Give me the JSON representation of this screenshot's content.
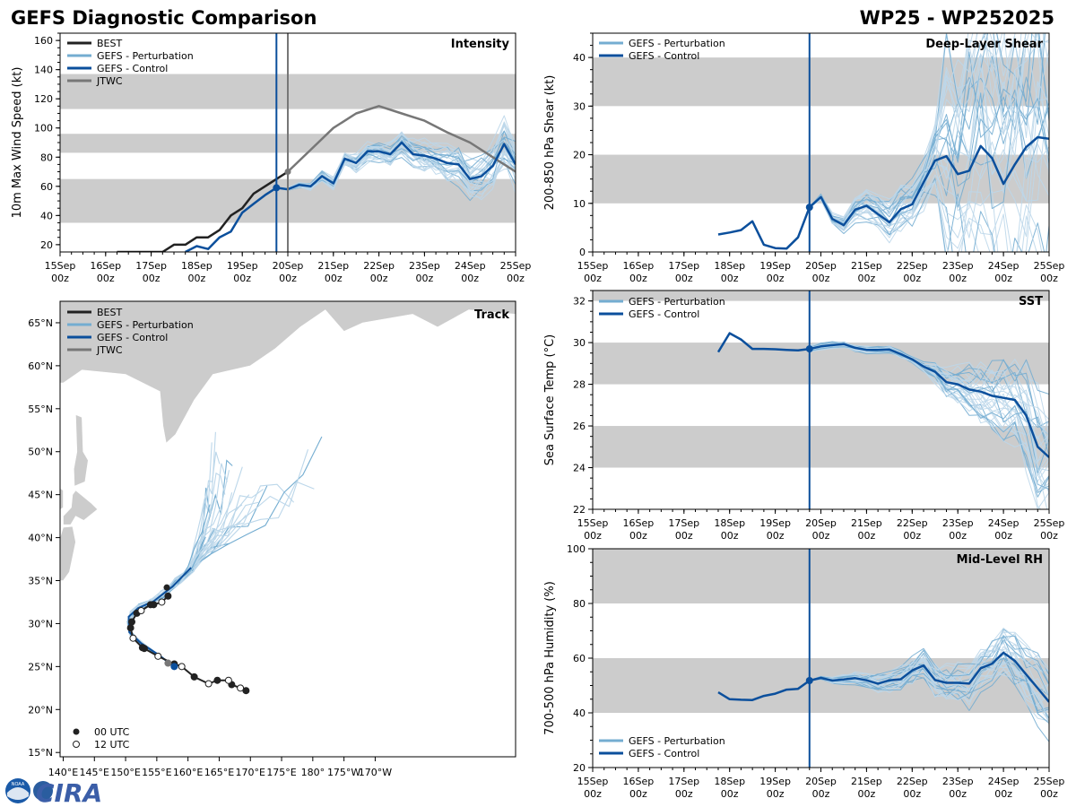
{
  "figure": {
    "title_left": "GEFS Diagnostic Comparison",
    "title_right": "WP25 - WP252025",
    "logo_text": "CIRA",
    "logo_badge_text": "NOAA"
  },
  "colors": {
    "best": "#222222",
    "perturbation": "#74add1",
    "perturbation_light": "#bcd7ea",
    "control": "#0b4f9c",
    "jtwc": "#777777",
    "band": "#cccccc",
    "land": "#cccccc"
  },
  "time_axis": {
    "labels": [
      "15Sep",
      "16Sep",
      "17Sep",
      "18Sep",
      "19Sep",
      "20Sep",
      "21Sep",
      "22Sep",
      "23Sep",
      "24Sep",
      "25Sep"
    ],
    "sublabel": "00z",
    "analysis_time_days": 4.75,
    "jtwc_analysis_time_days": 5.0
  },
  "chart_data": [
    {
      "id": "intensity",
      "type": "line",
      "title": "Intensity",
      "ylabel": "10m Max Wind Speed (kt)",
      "xlim_days": [
        0,
        10
      ],
      "ylim": [
        15,
        165
      ],
      "yticks": [
        20,
        40,
        60,
        80,
        100,
        120,
        140,
        160
      ],
      "bands": [
        [
          35,
          65
        ],
        [
          83,
          96
        ],
        [
          113,
          137
        ]
      ],
      "legend": [
        "BEST",
        "GEFS - Perturbation",
        "GEFS - Control",
        "JTWC"
      ],
      "series": [
        {
          "name": "BEST",
          "x": [
            1.25,
            1.5,
            1.75,
            2,
            2.25,
            2.5,
            2.75,
            3,
            3.25,
            3.5,
            3.75,
            4,
            4.25,
            4.5,
            4.75,
            5
          ],
          "y": [
            15,
            15,
            15,
            15,
            15,
            20,
            20,
            25,
            25,
            30,
            40,
            45,
            55,
            60,
            65,
            70
          ]
        },
        {
          "name": "GEFS - Control",
          "x": [
            2.75,
            3,
            3.25,
            3.5,
            3.75,
            4,
            4.25,
            4.5,
            4.75,
            5,
            5.25,
            5.5,
            5.75,
            6,
            6.25,
            6.5,
            6.75,
            7,
            7.25,
            7.5,
            7.75,
            8,
            8.25,
            8.5,
            8.75,
            9,
            9.25,
            9.5,
            9.75,
            10
          ],
          "y": [
            15,
            19,
            17,
            25,
            29,
            42,
            48,
            54,
            59,
            58,
            61,
            60,
            67,
            62,
            79,
            76,
            84,
            84,
            82,
            90,
            82,
            81,
            79,
            76,
            75,
            65,
            67,
            74,
            89,
            75
          ]
        },
        {
          "name": "JTWC",
          "x": [
            5,
            5.5,
            6,
            6.5,
            7,
            7.5,
            8,
            8.5,
            9,
            9.5,
            10
          ],
          "y": [
            70,
            85,
            100,
            110,
            115,
            110,
            105,
            97,
            90,
            80,
            70
          ]
        }
      ]
    },
    {
      "id": "shear",
      "type": "line",
      "title": "Deep-Layer Shear",
      "ylabel": "200-850 hPa Shear (kt)",
      "xlim_days": [
        0,
        10
      ],
      "ylim": [
        0,
        45
      ],
      "yticks": [
        0,
        10,
        20,
        30,
        40
      ],
      "bands": [
        [
          10,
          20
        ],
        [
          30,
          40
        ]
      ],
      "legend": [
        "GEFS - Perturbation",
        "GEFS - Control"
      ],
      "series": [
        {
          "name": "GEFS - Control",
          "x": [
            2.75,
            3,
            3.25,
            3.5,
            3.75,
            4,
            4.25,
            4.5,
            4.75,
            5,
            5.25,
            5.5,
            5.75,
            6,
            6.25,
            6.5,
            6.75,
            7,
            7.25,
            7.5,
            7.75,
            8,
            8.25,
            8.5,
            8.75,
            9,
            9.25,
            9.5,
            9.75,
            10
          ],
          "y": [
            3.6,
            4,
            4.5,
            6.3,
            1.5,
            0.8,
            0.7,
            3,
            9.2,
            11.3,
            6.8,
            5.5,
            8.7,
            9.5,
            7.8,
            6.1,
            8.8,
            9.8,
            14.3,
            18.8,
            19.7,
            16,
            16.7,
            21.8,
            19.3,
            14,
            18,
            21.6,
            23.6,
            23.3
          ]
        }
      ]
    },
    {
      "id": "sst",
      "type": "line",
      "title": "SST",
      "ylabel": "Sea Surface Temp (°C)",
      "xlim_days": [
        0,
        10
      ],
      "ylim": [
        22,
        32.5
      ],
      "yticks": [
        22,
        24,
        26,
        28,
        30,
        32
      ],
      "bands": [
        [
          24,
          26
        ],
        [
          28,
          30
        ],
        [
          32,
          33
        ]
      ],
      "legend": [
        "GEFS - Perturbation",
        "GEFS - Control"
      ],
      "series": [
        {
          "name": "GEFS - Control",
          "x": [
            2.75,
            3,
            3.25,
            3.5,
            3.75,
            4,
            4.25,
            4.5,
            4.75,
            5,
            5.25,
            5.5,
            5.75,
            6,
            6.25,
            6.5,
            6.75,
            7,
            7.25,
            7.5,
            7.75,
            8,
            8.25,
            8.5,
            8.75,
            9,
            9.25,
            9.5,
            9.75,
            10
          ],
          "y": [
            29.55,
            30.45,
            30.15,
            29.7,
            29.7,
            29.68,
            29.65,
            29.63,
            29.7,
            29.82,
            29.88,
            29.93,
            29.75,
            29.65,
            29.65,
            29.67,
            29.45,
            29.2,
            28.85,
            28.6,
            28.1,
            28,
            27.75,
            27.65,
            27.45,
            27.35,
            27.25,
            26.5,
            25,
            24.5
          ]
        }
      ]
    },
    {
      "id": "rh",
      "type": "line",
      "title": "Mid-Level RH",
      "ylabel": "700-500 hPa Humidity (%)",
      "xlim_days": [
        0,
        10
      ],
      "ylim": [
        20,
        100
      ],
      "yticks": [
        20,
        40,
        60,
        80,
        100
      ],
      "bands": [
        [
          40,
          60
        ],
        [
          80,
          100
        ]
      ],
      "legend": [
        "GEFS - Perturbation",
        "GEFS - Control"
      ],
      "series": [
        {
          "name": "GEFS - Control",
          "x": [
            2.75,
            3,
            3.25,
            3.5,
            3.75,
            4,
            4.25,
            4.5,
            4.75,
            5,
            5.25,
            5.5,
            5.75,
            6,
            6.25,
            6.5,
            6.75,
            7,
            7.25,
            7.5,
            7.75,
            8,
            8.25,
            8.5,
            8.75,
            9,
            9.25,
            9.5,
            9.75,
            10
          ],
          "y": [
            47.5,
            45,
            44.8,
            44.7,
            46.2,
            47,
            48.5,
            48.8,
            51.8,
            52.8,
            51.8,
            52.2,
            52.7,
            51.9,
            50.7,
            51.9,
            52.3,
            55.5,
            57.3,
            52,
            51,
            51,
            50.7,
            56.3,
            58,
            62,
            59,
            54,
            49,
            44
          ]
        }
      ]
    },
    {
      "id": "track",
      "type": "scatter",
      "title": "Track",
      "xlim_lon": [
        139.5,
        212.5
      ],
      "ylim_lat": [
        14.5,
        67.5
      ],
      "xtick_labels": [
        "140°E",
        "145°E",
        "150°E",
        "155°E",
        "160°E",
        "165°E",
        "170°E",
        "175°E",
        "180°",
        "175°W",
        "170°W"
      ],
      "xtick_lons": [
        140,
        145,
        150,
        155,
        160,
        165,
        170,
        175,
        180,
        185,
        190
      ],
      "ytick_labels": [
        "15°N",
        "20°N",
        "25°N",
        "30°N",
        "35°N",
        "40°N",
        "45°N",
        "50°N",
        "55°N",
        "60°N",
        "65°N"
      ],
      "ytick_lats": [
        15,
        20,
        25,
        30,
        35,
        40,
        45,
        50,
        55,
        60,
        65
      ],
      "legend": [
        "BEST",
        "GEFS - Perturbation",
        "GEFS - Control",
        "JTWC"
      ],
      "marker_legend": [
        "00 UTC",
        "12 UTC"
      ],
      "best_track": {
        "lon": [
          169.3,
          168.4,
          167,
          166.5,
          164.7,
          163.3,
          161,
          159,
          157.8,
          155.2,
          153,
          152.7,
          151.2,
          150.8,
          151,
          151.8,
          152.5,
          154,
          154.5,
          155.8,
          156.8
        ],
        "lat": [
          22.2,
          22.5,
          22.9,
          23.4,
          23.4,
          23,
          23.8,
          25,
          25.3,
          26.2,
          27.1,
          27.2,
          28.3,
          29.5,
          30.2,
          31.2,
          31.5,
          32.2,
          32.2,
          32.5,
          33.2
        ],
        "utc12": [
          false,
          true,
          false,
          true,
          false,
          true,
          false,
          true,
          false,
          true,
          false,
          false,
          true,
          false,
          false,
          false,
          true,
          false,
          false,
          true,
          false
        ]
      },
      "best_track_extra": {
        "lon": [
          156.6
        ],
        "lat": [
          34.2
        ]
      },
      "control_track": {
        "lon": [
          157.8,
          155,
          152.5,
          150.6,
          150.5,
          152,
          154.5,
          157.5,
          160.5
        ],
        "lat": [
          25,
          26.5,
          27.7,
          29,
          30.8,
          31.8,
          32.6,
          34.3,
          36.5
        ]
      },
      "jtwc_point": {
        "lon": 156.8,
        "lat": 25.4
      }
    }
  ]
}
